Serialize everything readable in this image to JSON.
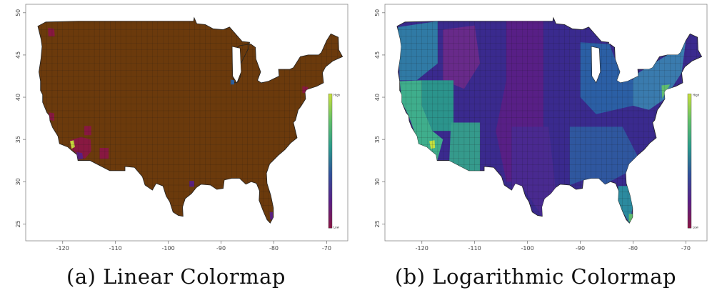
{
  "panels": [
    {
      "id": "a",
      "caption": "(a) Linear Colormap",
      "colormap": "linear",
      "fill_color": "#6b3a0c",
      "colorbar": {
        "high_label": "High",
        "low_label": "Low",
        "colors": [
          "#c8e03c",
          "#62c06a",
          "#2a9a8c",
          "#30509a",
          "#5a1f86",
          "#8a1644"
        ]
      },
      "x_ticks": [
        "-120",
        "-110",
        "-100",
        "-90",
        "-80",
        "-70"
      ],
      "y_ticks": [
        "50",
        "45",
        "40",
        "35",
        "30",
        "25"
      ]
    },
    {
      "id": "b",
      "caption": "(b) Logarithmic Colormap",
      "colormap": "logarithmic",
      "fill_color": "#3a2a8e",
      "colorbar": {
        "high_label": "High",
        "low_label": "Low",
        "colors": [
          "#c8e03c",
          "#62c06a",
          "#2a9a8c",
          "#30509a",
          "#5a1f86",
          "#8a1644"
        ]
      },
      "x_ticks": [
        "-120",
        "-110",
        "-100",
        "-90",
        "-80",
        "-70"
      ],
      "y_ticks": [
        "50",
        "45",
        "40",
        "35",
        "30",
        "25"
      ]
    }
  ],
  "map_data": {
    "lon_range": [
      -127,
      -66
    ],
    "lat_range": [
      23,
      51
    ]
  }
}
